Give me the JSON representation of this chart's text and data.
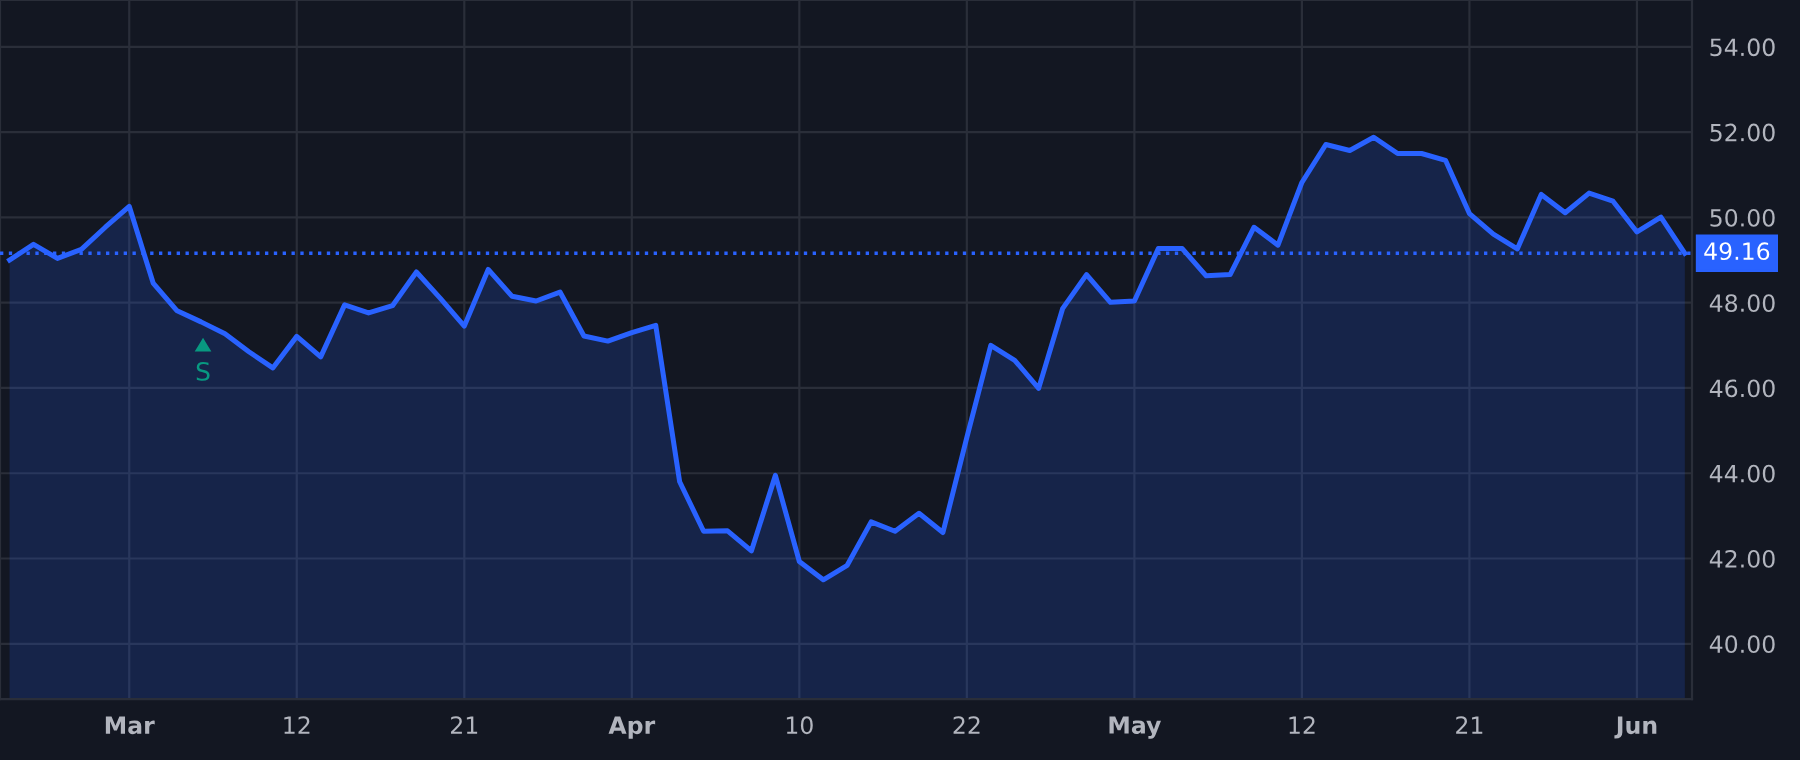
{
  "chart_data": {
    "type": "area",
    "categories": [
      null,
      null,
      null,
      null,
      null,
      "Mar",
      null,
      null,
      null,
      null,
      null,
      null,
      "12",
      null,
      null,
      null,
      null,
      null,
      null,
      "21",
      null,
      null,
      null,
      null,
      null,
      null,
      "Apr",
      null,
      null,
      null,
      null,
      null,
      null,
      "10",
      null,
      null,
      null,
      null,
      null,
      null,
      "22",
      null,
      null,
      null,
      null,
      null,
      null,
      "May",
      null,
      null,
      null,
      null,
      null,
      null,
      "12",
      null,
      null,
      null,
      null,
      null,
      null,
      "21",
      null,
      null,
      null,
      null,
      null,
      null,
      "Jun",
      null,
      null
    ],
    "series": [
      {
        "color": "#2962ff",
        "values": [
          49.0,
          49.37,
          49.04,
          49.25,
          49.77,
          50.26,
          48.46,
          47.81,
          47.55,
          47.27,
          46.85,
          46.47,
          47.21,
          46.73,
          47.95,
          47.76,
          47.93,
          48.72,
          48.1,
          47.45,
          48.78,
          48.15,
          48.04,
          48.25,
          47.22,
          47.1,
          47.3,
          47.47,
          43.8,
          42.64,
          42.65,
          42.18,
          43.95,
          41.93,
          41.5,
          41.84,
          42.86,
          42.64,
          43.06,
          42.61,
          44.84,
          47.0,
          46.65,
          45.99,
          47.86,
          48.66,
          48.01,
          48.04,
          49.27,
          49.27,
          48.63,
          48.66,
          49.77,
          49.35,
          50.82,
          51.71,
          51.57,
          51.88,
          51.5,
          51.5,
          51.34,
          50.09,
          49.61,
          49.26,
          50.54,
          50.11,
          50.57,
          50.38,
          49.66,
          50.01,
          49.16
        ]
      }
    ],
    "ylim": [
      38.7,
      55.1
    ],
    "yticks": [
      {
        "value": 40,
        "label": "40.00"
      },
      {
        "value": 42,
        "label": "42.00"
      },
      {
        "value": 44,
        "label": "44.00"
      },
      {
        "value": 46,
        "label": "46.00"
      },
      {
        "value": 48,
        "label": "48.00"
      },
      {
        "value": 50,
        "label": "50.00"
      },
      {
        "value": 52,
        "label": "52.00"
      },
      {
        "value": 54,
        "label": "54.00"
      }
    ],
    "ref_lines": [
      {
        "axis": "y",
        "value": 49.16,
        "label": "49.16",
        "color": "#2962ff",
        "line_style": "dotted"
      }
    ],
    "annotations": [
      "S"
    ],
    "grid": true,
    "legend": false,
    "marker": "none",
    "line_style": "solid"
  }
}
